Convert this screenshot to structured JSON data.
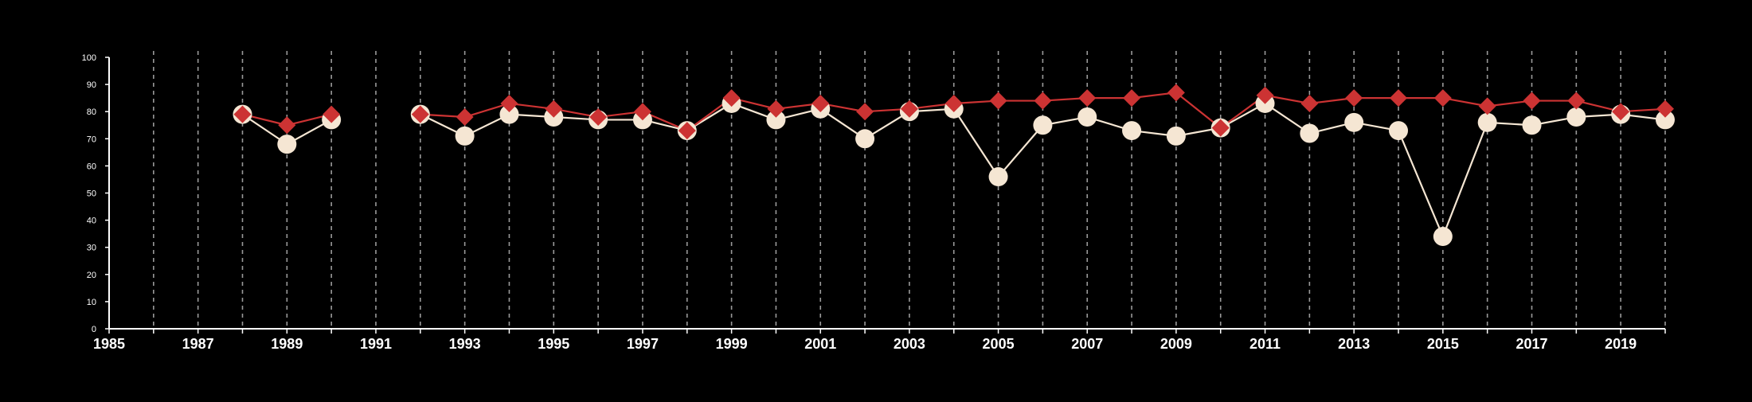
{
  "colors": {
    "background": "#000000",
    "axis": "#ffffff",
    "grid": "#9a9a9a",
    "series_a": "#f5e6d3",
    "series_b": "#cc3333"
  },
  "chart_data": {
    "type": "line",
    "title": "",
    "xlabel": "",
    "ylabel": "",
    "xlim": [
      1985,
      2020
    ],
    "ylim": [
      0,
      100
    ],
    "x_ticks": [
      1985,
      1987,
      1989,
      1991,
      1993,
      1995,
      1997,
      1999,
      2001,
      2003,
      2005,
      2007,
      2009,
      2011,
      2013,
      2015,
      2017,
      2019
    ],
    "y_ticks": [
      0,
      10,
      20,
      30,
      40,
      50,
      60,
      70,
      80,
      90,
      100
    ],
    "grid": "vertical dashed lines at every year",
    "legend": "none",
    "series": [
      {
        "marker": "circle",
        "color": "#f5e6d3",
        "points": [
          [
            1988,
            79
          ],
          [
            1989,
            68
          ],
          [
            1990,
            77
          ],
          [
            1992,
            79
          ],
          [
            1993,
            71
          ],
          [
            1994,
            79
          ],
          [
            1995,
            78
          ],
          [
            1996,
            77
          ],
          [
            1997,
            77
          ],
          [
            1998,
            73
          ],
          [
            1999,
            83
          ],
          [
            2000,
            77
          ],
          [
            2001,
            81
          ],
          [
            2002,
            70
          ],
          [
            2003,
            80
          ],
          [
            2004,
            81
          ],
          [
            2005,
            56
          ],
          [
            2006,
            75
          ],
          [
            2007,
            78
          ],
          [
            2008,
            73
          ],
          [
            2009,
            71
          ],
          [
            2010,
            74
          ],
          [
            2011,
            83
          ],
          [
            2012,
            72
          ],
          [
            2013,
            76
          ],
          [
            2014,
            73
          ],
          [
            2015,
            34
          ],
          [
            2016,
            76
          ],
          [
            2017,
            75
          ],
          [
            2018,
            78
          ],
          [
            2019,
            79
          ],
          [
            2020,
            77
          ]
        ]
      },
      {
        "marker": "diamond",
        "color": "#cc3333",
        "points": [
          [
            1988,
            79
          ],
          [
            1989,
            75
          ],
          [
            1990,
            79
          ],
          [
            1992,
            79
          ],
          [
            1993,
            78
          ],
          [
            1994,
            83
          ],
          [
            1995,
            81
          ],
          [
            1996,
            78
          ],
          [
            1997,
            80
          ],
          [
            1998,
            73
          ],
          [
            1999,
            85
          ],
          [
            2000,
            81
          ],
          [
            2001,
            83
          ],
          [
            2002,
            80
          ],
          [
            2003,
            81
          ],
          [
            2004,
            83
          ],
          [
            2005,
            84
          ],
          [
            2006,
            84
          ],
          [
            2007,
            85
          ],
          [
            2008,
            85
          ],
          [
            2009,
            87
          ],
          [
            2010,
            74
          ],
          [
            2011,
            86
          ],
          [
            2012,
            83
          ],
          [
            2013,
            85
          ],
          [
            2014,
            85
          ],
          [
            2015,
            85
          ],
          [
            2016,
            82
          ],
          [
            2017,
            84
          ],
          [
            2018,
            84
          ],
          [
            2019,
            80
          ],
          [
            2020,
            81
          ]
        ]
      }
    ]
  }
}
